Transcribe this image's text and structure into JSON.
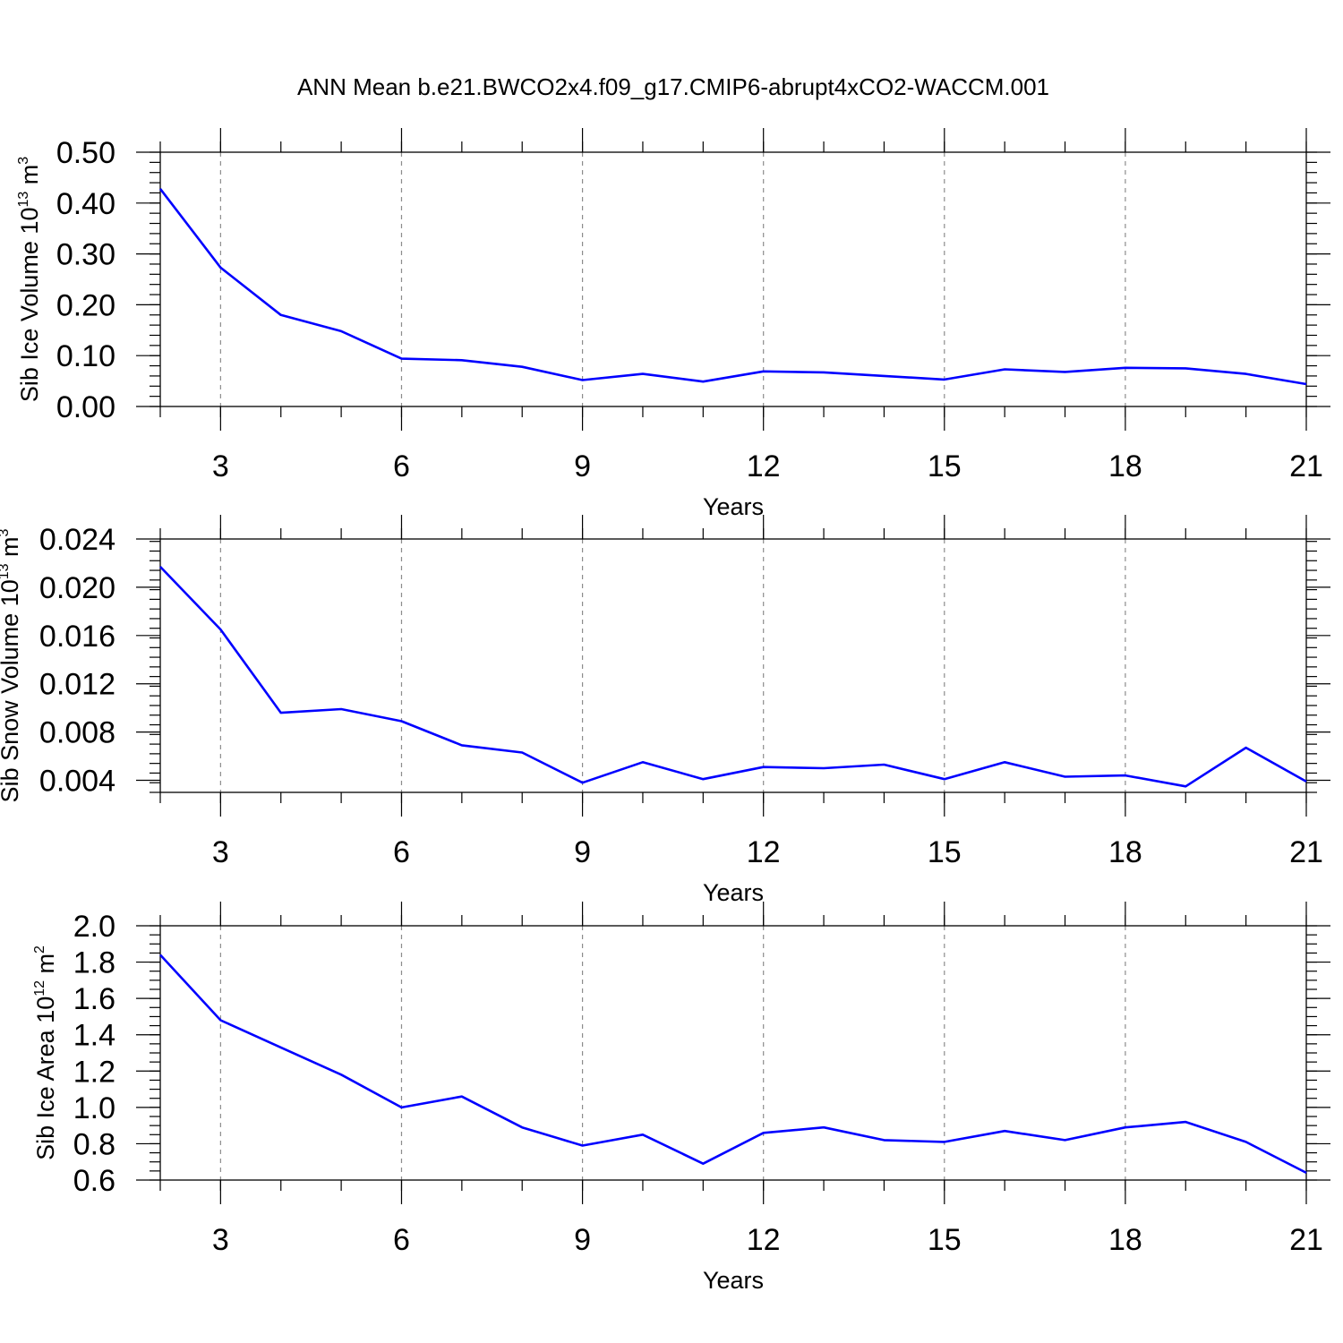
{
  "figure": {
    "title": "ANN Mean b.e21.BWCO2x4.f09_g17.CMIP6-abrupt4xCO2-WACCM.001"
  },
  "chart_data": [
    {
      "type": "line",
      "title": "",
      "xlabel": "Years",
      "ylabel": {
        "text": "Sib Ice Volume 10",
        "sup1": "13",
        "mid": " m",
        "sup2": "3"
      },
      "xlim": [
        2,
        21
      ],
      "ylim": [
        0.0,
        0.5
      ],
      "xticks": [
        3,
        6,
        9,
        12,
        15,
        18,
        21
      ],
      "xtick_labels": [
        "3",
        "6",
        "9",
        "12",
        "15",
        "18",
        "21"
      ],
      "yticks": [
        0.0,
        0.1,
        0.2,
        0.3,
        0.4,
        0.5
      ],
      "ytick_labels": [
        "0.00",
        "0.10",
        "0.20",
        "0.30",
        "0.40",
        "0.50"
      ],
      "x_minor_step": 1,
      "y_minor_step": 0.02,
      "grid": "vertical dashed at major x ticks",
      "series_color": "#0000ff",
      "x": [
        2,
        3,
        4,
        5,
        6,
        7,
        8,
        9,
        10,
        11,
        12,
        13,
        14,
        15,
        16,
        17,
        18,
        19,
        20,
        21
      ],
      "values": [
        0.428,
        0.273,
        0.18,
        0.148,
        0.094,
        0.091,
        0.078,
        0.052,
        0.064,
        0.049,
        0.069,
        0.067,
        0.06,
        0.053,
        0.073,
        0.068,
        0.076,
        0.075,
        0.064,
        0.044
      ]
    },
    {
      "type": "line",
      "title": "",
      "xlabel": "Years",
      "ylabel": {
        "text": "Sib Snow Volume 10",
        "sup1": "13",
        "mid": " m",
        "sup2": "3"
      },
      "xlim": [
        2,
        21
      ],
      "ylim": [
        0.003,
        0.024
      ],
      "xticks": [
        3,
        6,
        9,
        12,
        15,
        18,
        21
      ],
      "xtick_labels": [
        "3",
        "6",
        "9",
        "12",
        "15",
        "18",
        "21"
      ],
      "yticks": [
        0.004,
        0.008,
        0.012,
        0.016,
        0.02,
        0.024
      ],
      "ytick_labels": [
        "0.004",
        "0.008",
        "0.012",
        "0.016",
        "0.020",
        "0.024"
      ],
      "x_minor_step": 1,
      "y_minor_step": 0.0008,
      "grid": "vertical dashed at major x ticks",
      "series_color": "#0000ff",
      "x": [
        2,
        3,
        4,
        5,
        6,
        7,
        8,
        9,
        10,
        11,
        12,
        13,
        14,
        15,
        16,
        17,
        18,
        19,
        20,
        21
      ],
      "values": [
        0.0217,
        0.0165,
        0.0096,
        0.0099,
        0.0089,
        0.0069,
        0.0063,
        0.0038,
        0.0055,
        0.0041,
        0.0051,
        0.005,
        0.0053,
        0.0041,
        0.0055,
        0.0043,
        0.0044,
        0.0035,
        0.0067,
        0.0039
      ]
    },
    {
      "type": "line",
      "title": "",
      "xlabel": "Years",
      "ylabel": {
        "text": "Sib Ice Area 10",
        "sup1": "12",
        "mid": " m",
        "sup2": "2"
      },
      "xlim": [
        2,
        21
      ],
      "ylim": [
        0.6,
        2.0
      ],
      "xticks": [
        3,
        6,
        9,
        12,
        15,
        18,
        21
      ],
      "xtick_labels": [
        "3",
        "6",
        "9",
        "12",
        "15",
        "18",
        "21"
      ],
      "yticks": [
        0.6,
        0.8,
        1.0,
        1.2,
        1.4,
        1.6,
        1.8,
        2.0
      ],
      "ytick_labels": [
        "0.6",
        "0.8",
        "1.0",
        "1.2",
        "1.4",
        "1.6",
        "1.8",
        "2.0"
      ],
      "x_minor_step": 1,
      "y_minor_step": 0.05,
      "grid": "vertical dashed at major x ticks",
      "series_color": "#0000ff",
      "x": [
        2,
        3,
        4,
        5,
        6,
        7,
        8,
        9,
        10,
        11,
        12,
        13,
        14,
        15,
        16,
        17,
        18,
        19,
        20,
        21
      ],
      "values": [
        1.84,
        1.48,
        1.33,
        1.18,
        1.0,
        1.06,
        0.89,
        0.79,
        0.85,
        0.69,
        0.86,
        0.89,
        0.82,
        0.81,
        0.87,
        0.82,
        0.89,
        0.92,
        0.81,
        0.64
      ]
    }
  ]
}
